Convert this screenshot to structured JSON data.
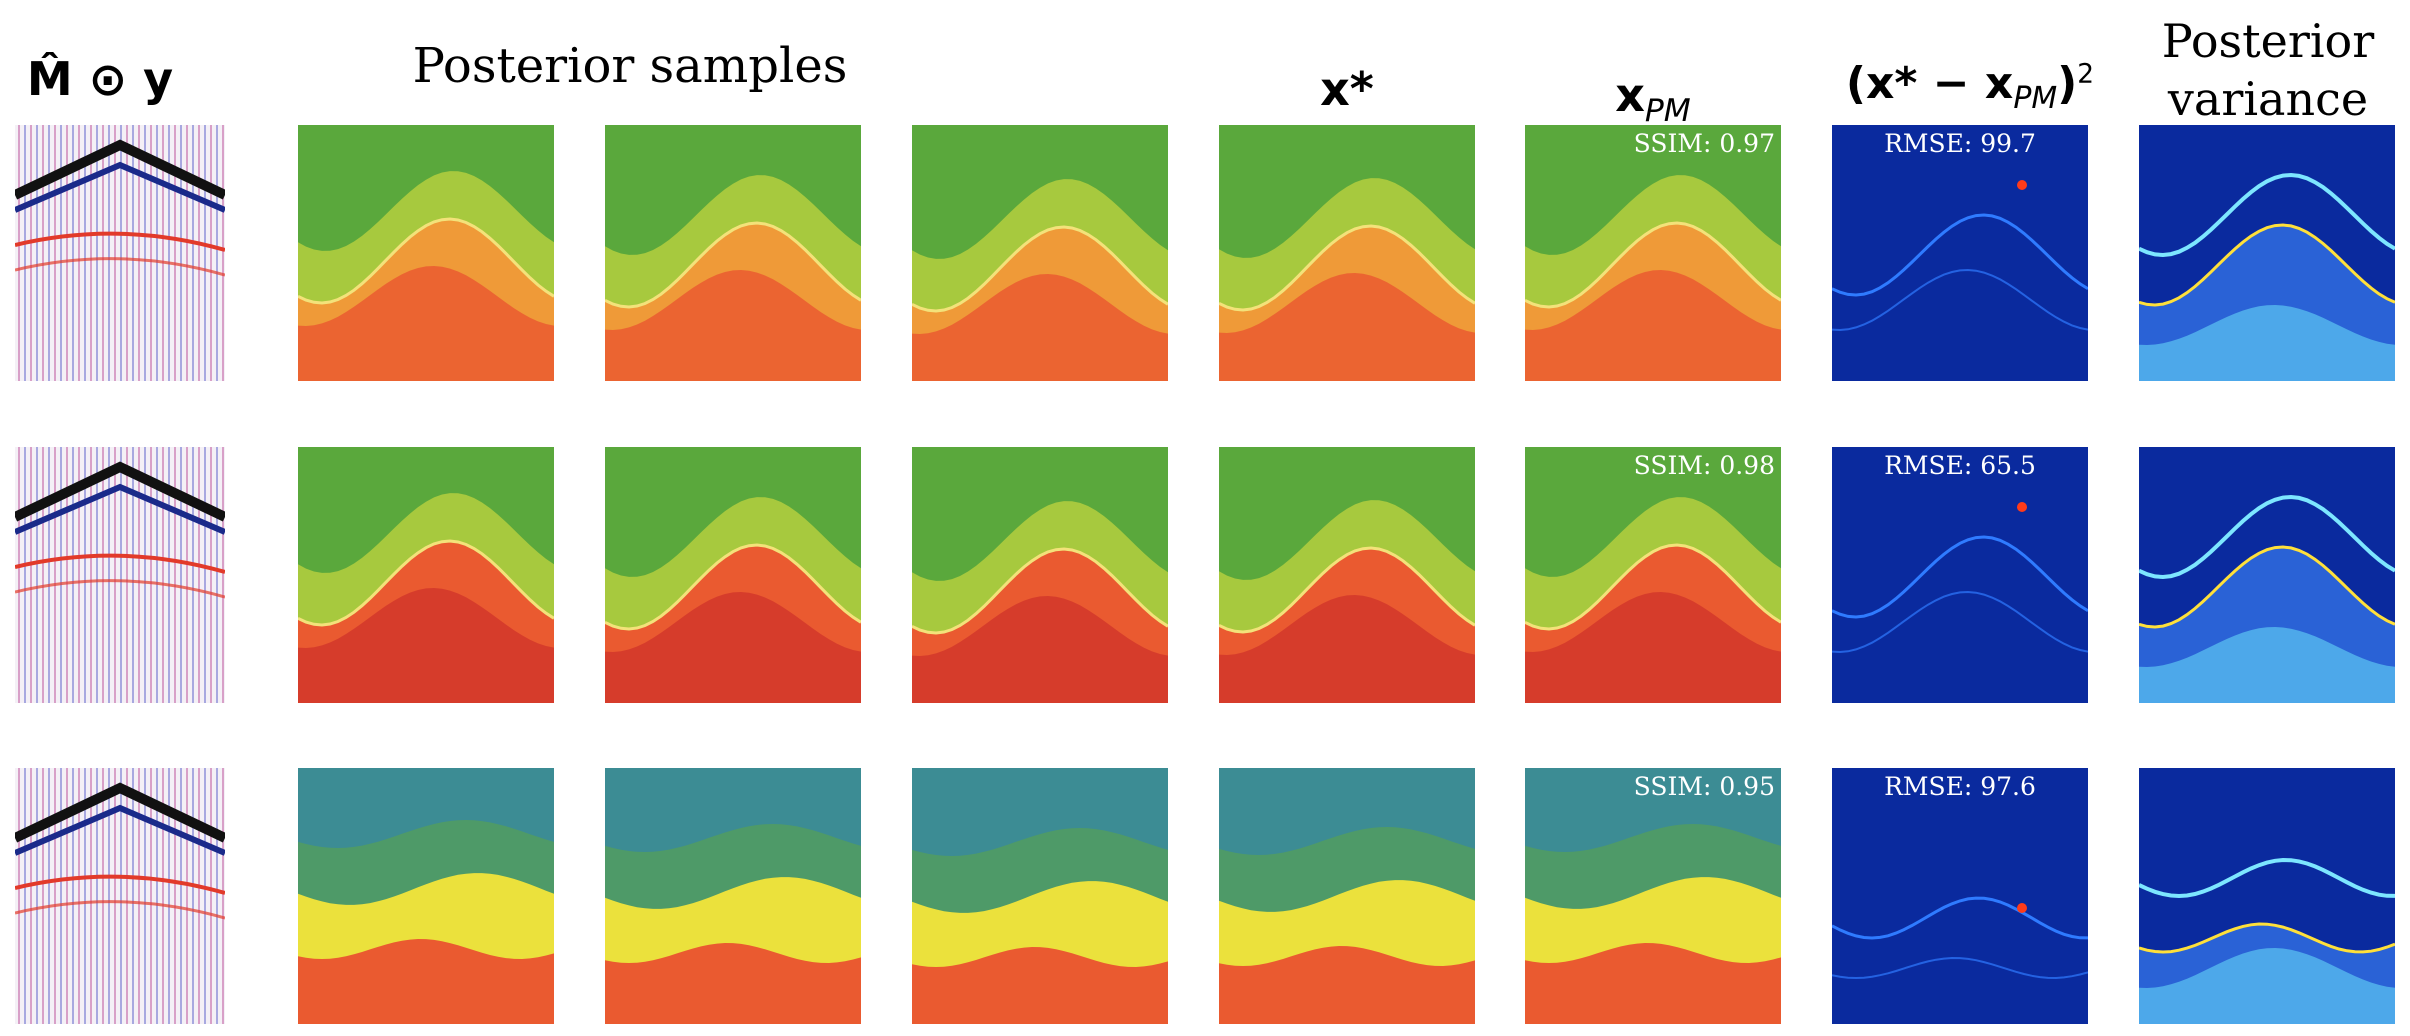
{
  "headers": {
    "col1": "M̂ ⊙ y",
    "posterior_samples": "Posterior  samples",
    "x_star": "x*",
    "x_pm": "x",
    "x_pm_sub": "PM",
    "err_open": "(x* − x",
    "err_sub": "PM",
    "err_close": ")",
    "err_sup": "2",
    "variance_line1": "Posterior",
    "variance_line2": "variance"
  },
  "rows": [
    {
      "ssim": "SSIM: 0.97",
      "rmse": "RMSE: 99.7"
    },
    {
      "ssim": "SSIM: 0.98",
      "rmse": "RMSE: 65.5"
    },
    {
      "ssim": "SSIM: 0.95",
      "rmse": "RMSE: 97.6"
    }
  ],
  "colors": {
    "green_dark": "#5aa83c",
    "green_light": "#a7c93e",
    "orange": "#ef9a38",
    "red_orange": "#ea5a30",
    "red": "#d2372a",
    "teal": "#3c8c94",
    "yellow": "#ebe13c",
    "err_bg": "#0a2a9e",
    "var_bg": "#2a62d6",
    "var_light": "#5cc6f2"
  }
}
